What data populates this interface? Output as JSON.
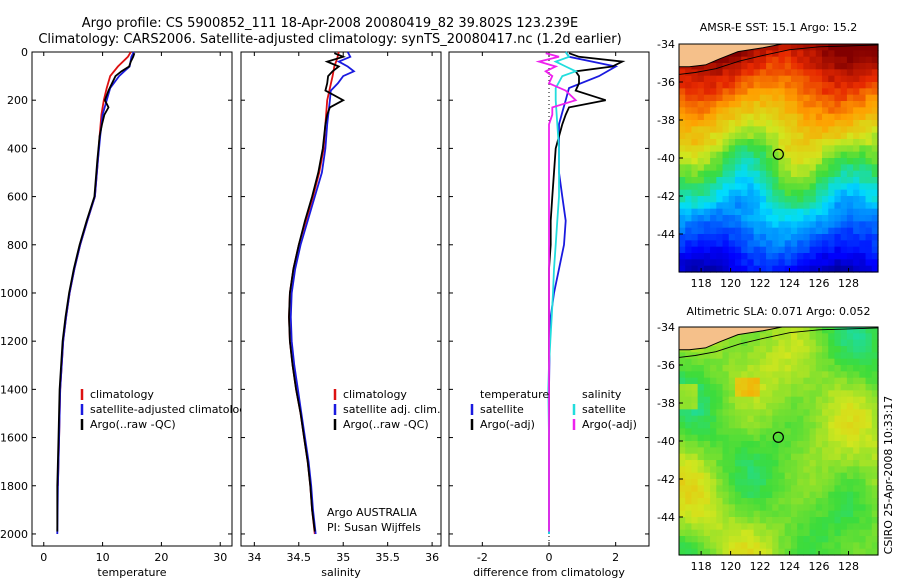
{
  "header": {
    "line1": "Argo profile: CS 5900852_111 18-Apr-2008 20080419_82 39.802S 123.239E",
    "line2": "Climatology: CARS2006. Satellite-adjusted climatology: synTS_20080417.nc (1.2d earlier)"
  },
  "colors": {
    "climatology": "#dd1111",
    "satellite": "#1a1adf",
    "argo": "#000000",
    "argo_sal_adj": "#ee22ee",
    "satellite_sal": "#22dddd",
    "land": "#f5c08a"
  },
  "footer_credit": "CSIRO 25-Apr-2008 10:33:17",
  "chart_data": [
    {
      "type": "line",
      "id": "temperature",
      "xlabel": "temperature",
      "ylabel": "",
      "xlim": [
        -2,
        32
      ],
      "ylim": [
        2050,
        0
      ],
      "xticks": [
        0,
        10,
        20,
        30
      ],
      "yticks": [
        0,
        200,
        400,
        600,
        800,
        1000,
        1200,
        1400,
        1600,
        1800,
        2000
      ],
      "legend": {
        "position": "lower-middle",
        "entries": [
          {
            "label": "climatology",
            "series": "climatology"
          },
          {
            "label": "satellite-adjusted climatology",
            "series": "satellite"
          },
          {
            "label": "Argo(..raw -QC)",
            "series": "argo"
          }
        ]
      },
      "series": [
        {
          "name": "climatology",
          "depth": [
            0,
            20,
            60,
            100,
            150,
            200,
            260,
            350,
            450,
            600,
            700,
            800,
            900,
            1000,
            1100,
            1200,
            1400,
            1600,
            1800
          ],
          "values": [
            14.8,
            14.3,
            12.6,
            11.3,
            10.7,
            10.2,
            9.8,
            9.5,
            9.2,
            8.7,
            7.4,
            6.2,
            5.2,
            4.4,
            3.8,
            3.3,
            2.8,
            2.6,
            2.4
          ]
        },
        {
          "name": "satellite",
          "depth": [
            0,
            20,
            60,
            100,
            150,
            200,
            260,
            350,
            450,
            600,
            700,
            800,
            900,
            1000,
            1100,
            1200,
            1400,
            1600,
            1800,
            2000
          ],
          "values": [
            15.3,
            14.9,
            14.6,
            12.8,
            11.3,
            10.7,
            10.0,
            9.6,
            9.2,
            8.7,
            7.4,
            6.2,
            5.2,
            4.4,
            3.8,
            3.3,
            2.8,
            2.6,
            2.4,
            2.3
          ]
        },
        {
          "name": "argo",
          "depth": [
            5,
            20,
            40,
            60,
            80,
            100,
            130,
            160,
            200,
            230,
            260,
            300,
            350,
            450,
            600,
            700,
            800,
            900,
            1000,
            1100,
            1200,
            1400,
            1600,
            1800,
            1990
          ],
          "values": [
            15.4,
            15.2,
            14.8,
            14.5,
            13.2,
            12.2,
            11.6,
            11.0,
            10.4,
            11.0,
            10.3,
            9.9,
            9.5,
            9.1,
            8.6,
            7.3,
            6.1,
            5.1,
            4.3,
            3.7,
            3.2,
            2.7,
            2.5,
            2.3,
            2.3
          ]
        }
      ]
    },
    {
      "type": "line",
      "id": "salinity",
      "xlabel": "salinity",
      "ylabel": "",
      "xlim": [
        33.85,
        36.1
      ],
      "ylim": [
        2050,
        0
      ],
      "xticks": [
        34,
        34.5,
        35,
        35.5,
        36
      ],
      "annotation": [
        "Argo AUSTRALIA",
        "PI: Susan Wijffels"
      ],
      "legend": {
        "position": "lower-middle",
        "entries": [
          {
            "label": "climatology",
            "series": "climatology"
          },
          {
            "label": "satellite adj. clim.",
            "series": "satellite"
          },
          {
            "label": "Argo(..raw -QC)",
            "series": "argo"
          }
        ]
      },
      "series": [
        {
          "name": "climatology",
          "depth": [
            0,
            30,
            60,
            100,
            150,
            200,
            300,
            400,
            500,
            600,
            700,
            800,
            900,
            1000,
            1100,
            1200,
            1300,
            1400,
            1500,
            1600,
            1700,
            1800,
            1900,
            2000
          ],
          "values": [
            34.95,
            34.93,
            34.9,
            34.88,
            34.85,
            34.82,
            34.8,
            34.78,
            34.73,
            34.66,
            34.58,
            34.5,
            34.44,
            34.4,
            34.39,
            34.4,
            34.43,
            34.47,
            34.52,
            34.56,
            34.6,
            34.63,
            34.65,
            34.68
          ]
        },
        {
          "name": "satellite",
          "depth": [
            0,
            20,
            40,
            60,
            80,
            100,
            130,
            160,
            200,
            300,
            400,
            500,
            600,
            700,
            800,
            900,
            1000,
            1100,
            1200,
            1300,
            1400,
            1500,
            1600,
            1700,
            1800,
            1900,
            2000
          ],
          "values": [
            35.05,
            35.08,
            34.95,
            35.05,
            35.12,
            35.0,
            34.94,
            34.86,
            34.85,
            34.82,
            34.8,
            34.76,
            34.68,
            34.6,
            34.52,
            34.46,
            34.42,
            34.41,
            34.42,
            34.45,
            34.49,
            34.53,
            34.57,
            34.61,
            34.64,
            34.66,
            34.69
          ]
        },
        {
          "name": "argo",
          "depth": [
            5,
            20,
            40,
            60,
            80,
            100,
            130,
            160,
            200,
            230,
            260,
            300,
            400,
            500,
            600,
            700,
            800,
            900,
            1000,
            1100,
            1200,
            1300,
            1400,
            1500,
            1600,
            1700,
            1800,
            1900,
            1990
          ],
          "values": [
            34.9,
            35.0,
            34.82,
            34.95,
            34.88,
            34.83,
            34.82,
            34.8,
            35.0,
            34.85,
            34.82,
            34.8,
            34.77,
            34.72,
            34.65,
            34.57,
            34.5,
            34.44,
            34.4,
            34.39,
            34.4,
            34.43,
            34.47,
            34.52,
            34.56,
            34.6,
            34.63,
            34.65,
            34.68
          ]
        }
      ]
    },
    {
      "type": "line",
      "id": "difference",
      "xlabel": "difference from climatology",
      "ylabel": "",
      "xlim": [
        -3,
        3
      ],
      "ylim": [
        2050,
        0
      ],
      "xticks": [
        -2,
        0,
        2
      ],
      "legend": {
        "position": "lower-middle",
        "columns": [
          {
            "heading": "temperature",
            "entries": [
              {
                "label": "satellite",
                "series": "t_satellite"
              },
              {
                "label": "Argo(-adj)",
                "series": "t_argo"
              }
            ]
          },
          {
            "heading": "salinity",
            "entries": [
              {
                "label": "satellite",
                "series": "s_satellite"
              },
              {
                "label": "Argo(-adj)",
                "series": "s_argo"
              }
            ]
          }
        ]
      },
      "series": [
        {
          "name": "t_satellite",
          "depth": [
            0,
            20,
            60,
            100,
            150,
            200,
            250,
            300,
            400,
            500,
            600,
            700,
            800,
            900,
            1000,
            1100,
            1200,
            1400,
            1600,
            1800,
            2000
          ],
          "values": [
            0.5,
            0.6,
            2.0,
            1.5,
            0.6,
            0.5,
            0.4,
            0.3,
            0.3,
            0.3,
            0.4,
            0.5,
            0.45,
            0.3,
            0.15,
            0.05,
            0.02,
            0.0,
            0.0,
            0.0,
            0.0
          ]
        },
        {
          "name": "t_argo",
          "depth": [
            5,
            20,
            40,
            60,
            80,
            100,
            130,
            160,
            200,
            230,
            260,
            300,
            400,
            500,
            600,
            700,
            800,
            900,
            1000,
            1200,
            1400,
            1600,
            1800,
            1990
          ],
          "values": [
            0.6,
            0.9,
            2.2,
            1.9,
            0.8,
            0.9,
            0.9,
            0.8,
            1.7,
            0.6,
            0.5,
            0.4,
            0.2,
            0.15,
            0.1,
            0.05,
            0.05,
            0.0,
            0.0,
            0.0,
            0.0,
            0.0,
            0.0,
            0.0
          ]
        },
        {
          "name": "s_satellite",
          "depth": [
            0,
            20,
            40,
            60,
            80,
            100,
            150,
            200,
            300,
            400,
            500,
            600,
            700,
            800,
            900,
            1000,
            1100,
            1200,
            1300,
            1400,
            1600,
            1800,
            2000
          ],
          "values": [
            0.5,
            0.6,
            0.2,
            0.5,
            0.8,
            0.4,
            0.2,
            0.2,
            0.25,
            0.3,
            0.3,
            0.3,
            0.25,
            0.2,
            0.15,
            0.12,
            0.08,
            0.04,
            0.0,
            -0.02,
            0.0,
            0.0,
            0.0
          ]
        },
        {
          "name": "s_argo",
          "depth": [
            5,
            20,
            40,
            60,
            80,
            100,
            130,
            160,
            200,
            230,
            260,
            300,
            400,
            500,
            600,
            700,
            800,
            900,
            1000,
            1200,
            1400,
            1600,
            1800,
            1990
          ],
          "values": [
            -0.1,
            0.3,
            -0.3,
            0.2,
            -0.1,
            0.1,
            0.0,
            0.5,
            0.8,
            0.1,
            0.1,
            0.0,
            0.0,
            0.0,
            0.0,
            0.0,
            0.0,
            0.0,
            0.0,
            0.0,
            0.0,
            0.0,
            0.0,
            0.0
          ]
        }
      ]
    },
    {
      "type": "heatmap",
      "id": "sst-map",
      "title": "AMSR-E SST: 15.1 Argo: 15.2",
      "xlim": [
        116.5,
        130
      ],
      "ylim": [
        -46,
        -34
      ],
      "xticks": [
        118,
        120,
        122,
        124,
        126,
        128
      ],
      "yticks": [
        -34,
        -36,
        -38,
        -40,
        -42,
        -44
      ],
      "marker": {
        "lon": 123.239,
        "lat": -39.802
      }
    },
    {
      "type": "heatmap",
      "id": "sla-map",
      "title": "Altimetric SLA: 0.071 Argo: 0.052",
      "xlim": [
        116.5,
        130
      ],
      "ylim": [
        -46,
        -34
      ],
      "xticks": [
        118,
        120,
        122,
        124,
        126,
        128
      ],
      "yticks": [
        -34,
        -36,
        -38,
        -40,
        -42,
        -44
      ],
      "marker": {
        "lon": 123.239,
        "lat": -39.802
      }
    }
  ]
}
